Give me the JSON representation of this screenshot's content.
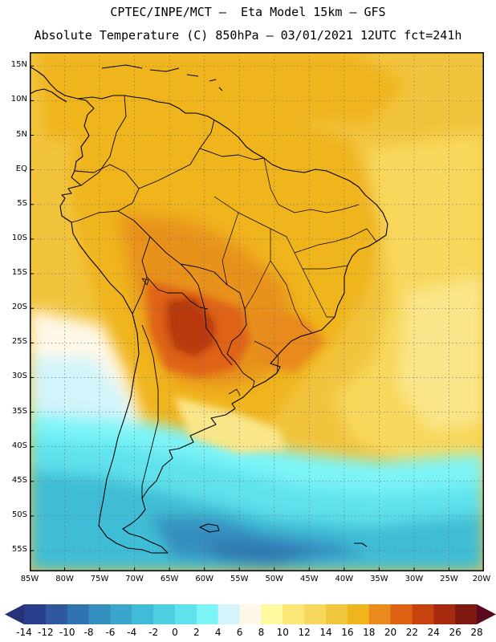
{
  "header": {
    "line1": "CPTEC/INPE/MCT –  Eta Model 15km – GFS",
    "line2": "Absolute Temperature (C) 850hPa – 03/01/2021 12UTC fct=241h"
  },
  "map": {
    "lat_labels": [
      "15N",
      "10N",
      "5N",
      "EQ",
      "5S",
      "10S",
      "15S",
      "20S",
      "25S",
      "30S",
      "35S",
      "40S",
      "45S",
      "50S",
      "55S"
    ],
    "lon_labels": [
      "85W",
      "80W",
      "75W",
      "70W",
      "65W",
      "60W",
      "55W",
      "50W",
      "45W",
      "40W",
      "35W",
      "30W",
      "25W",
      "20W"
    ],
    "lat_range": [
      -58,
      17
    ],
    "lon_range": [
      -85,
      -20
    ]
  },
  "colorbar": {
    "labels": [
      "-14",
      "-12",
      "-10",
      "-8",
      "-6",
      "-4",
      "-2",
      "0",
      "2",
      "4",
      "6",
      "8",
      "10",
      "12",
      "14",
      "16",
      "18",
      "20",
      "22",
      "24",
      "26",
      "28"
    ],
    "low_arrow_color": "#283278",
    "high_arrow_color": "#5a0a1e",
    "colors": [
      "#2a3e8e",
      "#30589e",
      "#2f74b0",
      "#358ec0",
      "#3ba6cc",
      "#3fbdd6",
      "#4dd0e2",
      "#5ee2ec",
      "#7cf4f8",
      "#d2f4fa",
      "#fff8e8",
      "#fffaa0",
      "#fbe676",
      "#f8d85c",
      "#f2c740",
      "#f0b41c",
      "#e88a1c",
      "#df6212",
      "#c8420e",
      "#a82a0e",
      "#7e1a12"
    ]
  }
}
